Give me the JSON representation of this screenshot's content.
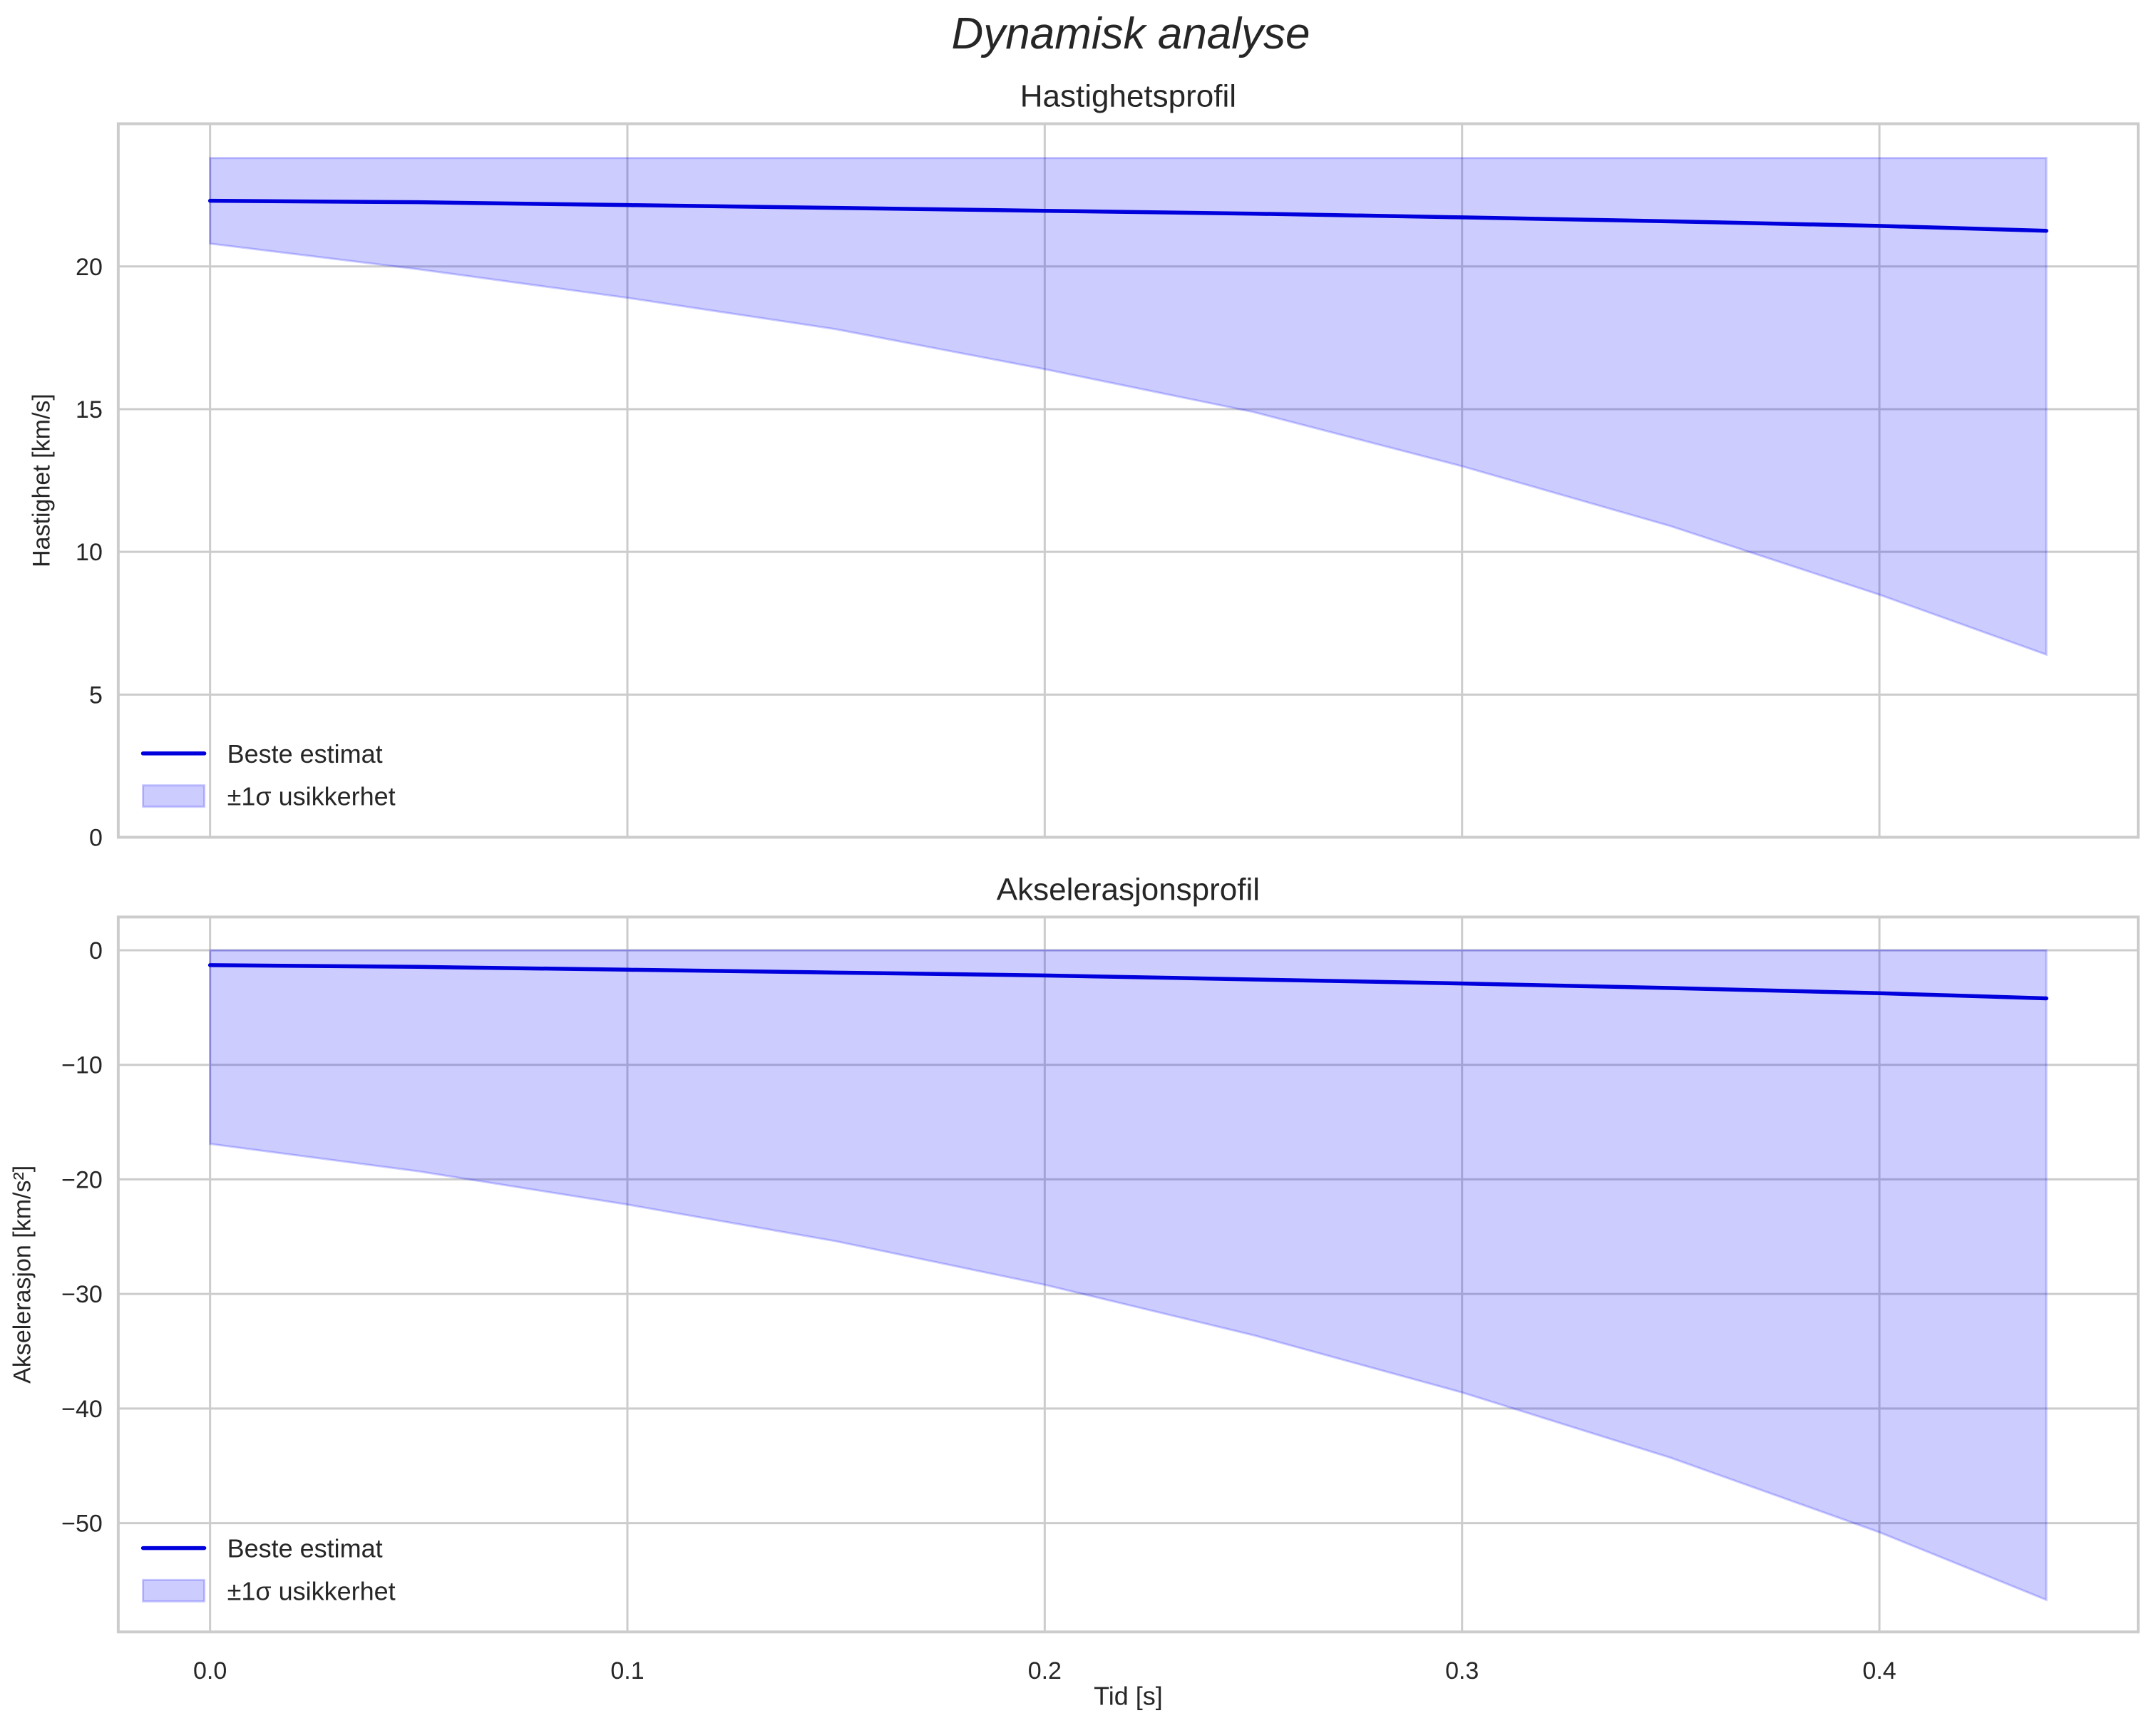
{
  "figure": {
    "suptitle": "Dynamisk analyse",
    "xlabel": "Tid [s]"
  },
  "colors": {
    "line": "#0000dd",
    "band_fill": "#ccccff",
    "band_edge": "#9999ee",
    "grid": "#cccccc",
    "spine": "#cccccc",
    "text": "#262626"
  },
  "chart_data": [
    {
      "type": "line",
      "title": "Hastighetsprofil",
      "xlabel": "",
      "ylabel": "Hastighet [km/s]",
      "xlim": [
        -0.022,
        0.462
      ],
      "ylim": [
        0,
        25.0
      ],
      "grid": true,
      "xticks": [
        "0.0",
        "0.1",
        "0.2",
        "0.3",
        "0.4"
      ],
      "yticks": [
        "0",
        "5",
        "10",
        "15",
        "20"
      ],
      "legend": {
        "position": "lower left",
        "entries": [
          "Beste estimat",
          "±1σ usikkerhet"
        ]
      },
      "x": [
        0.0,
        0.05,
        0.1,
        0.15,
        0.2,
        0.25,
        0.3,
        0.35,
        0.4,
        0.44
      ],
      "series": [
        {
          "name": "Beste estimat",
          "kind": "line",
          "values": [
            22.3,
            22.25,
            22.15,
            22.05,
            21.95,
            21.85,
            21.72,
            21.58,
            21.42,
            21.25
          ]
        },
        {
          "name": "±1σ usikkerhet (upper)",
          "kind": "band_upper",
          "values": [
            23.8,
            23.8,
            23.8,
            23.8,
            23.8,
            23.8,
            23.8,
            23.8,
            23.8,
            23.8
          ]
        },
        {
          "name": "±1σ usikkerhet (lower)",
          "kind": "band_lower",
          "values": [
            20.8,
            19.9,
            18.9,
            17.8,
            16.4,
            14.9,
            13.0,
            10.9,
            8.5,
            6.4
          ]
        }
      ]
    },
    {
      "type": "line",
      "title": "Akselerasjonsprofil",
      "xlabel": "Tid [s]",
      "ylabel": "Akselerasjon [km/s²]",
      "xlim": [
        -0.022,
        0.462
      ],
      "ylim": [
        -59.5,
        2.9
      ],
      "grid": true,
      "xticks": [
        "0.0",
        "0.1",
        "0.2",
        "0.3",
        "0.4"
      ],
      "yticks": [
        "0",
        "−10",
        "−20",
        "−30",
        "−40",
        "−50"
      ],
      "legend": {
        "position": "lower left",
        "entries": [
          "Beste estimat",
          "±1σ usikkerhet"
        ]
      },
      "x": [
        0.0,
        0.05,
        0.1,
        0.15,
        0.2,
        0.25,
        0.3,
        0.35,
        0.4,
        0.44
      ],
      "series": [
        {
          "name": "Beste estimat",
          "kind": "line",
          "values": [
            -1.3,
            -1.45,
            -1.7,
            -1.95,
            -2.2,
            -2.55,
            -2.9,
            -3.3,
            -3.75,
            -4.2
          ]
        },
        {
          "name": "±1σ usikkerhet (upper)",
          "kind": "band_upper",
          "values": [
            0,
            0,
            0,
            0,
            0,
            0,
            0,
            0,
            0,
            0
          ]
        },
        {
          "name": "±1σ usikkerhet (lower)",
          "kind": "band_lower",
          "values": [
            -16.9,
            -19.3,
            -22.2,
            -25.4,
            -29.2,
            -33.6,
            -38.6,
            -44.3,
            -50.8,
            -56.7
          ]
        }
      ]
    }
  ]
}
